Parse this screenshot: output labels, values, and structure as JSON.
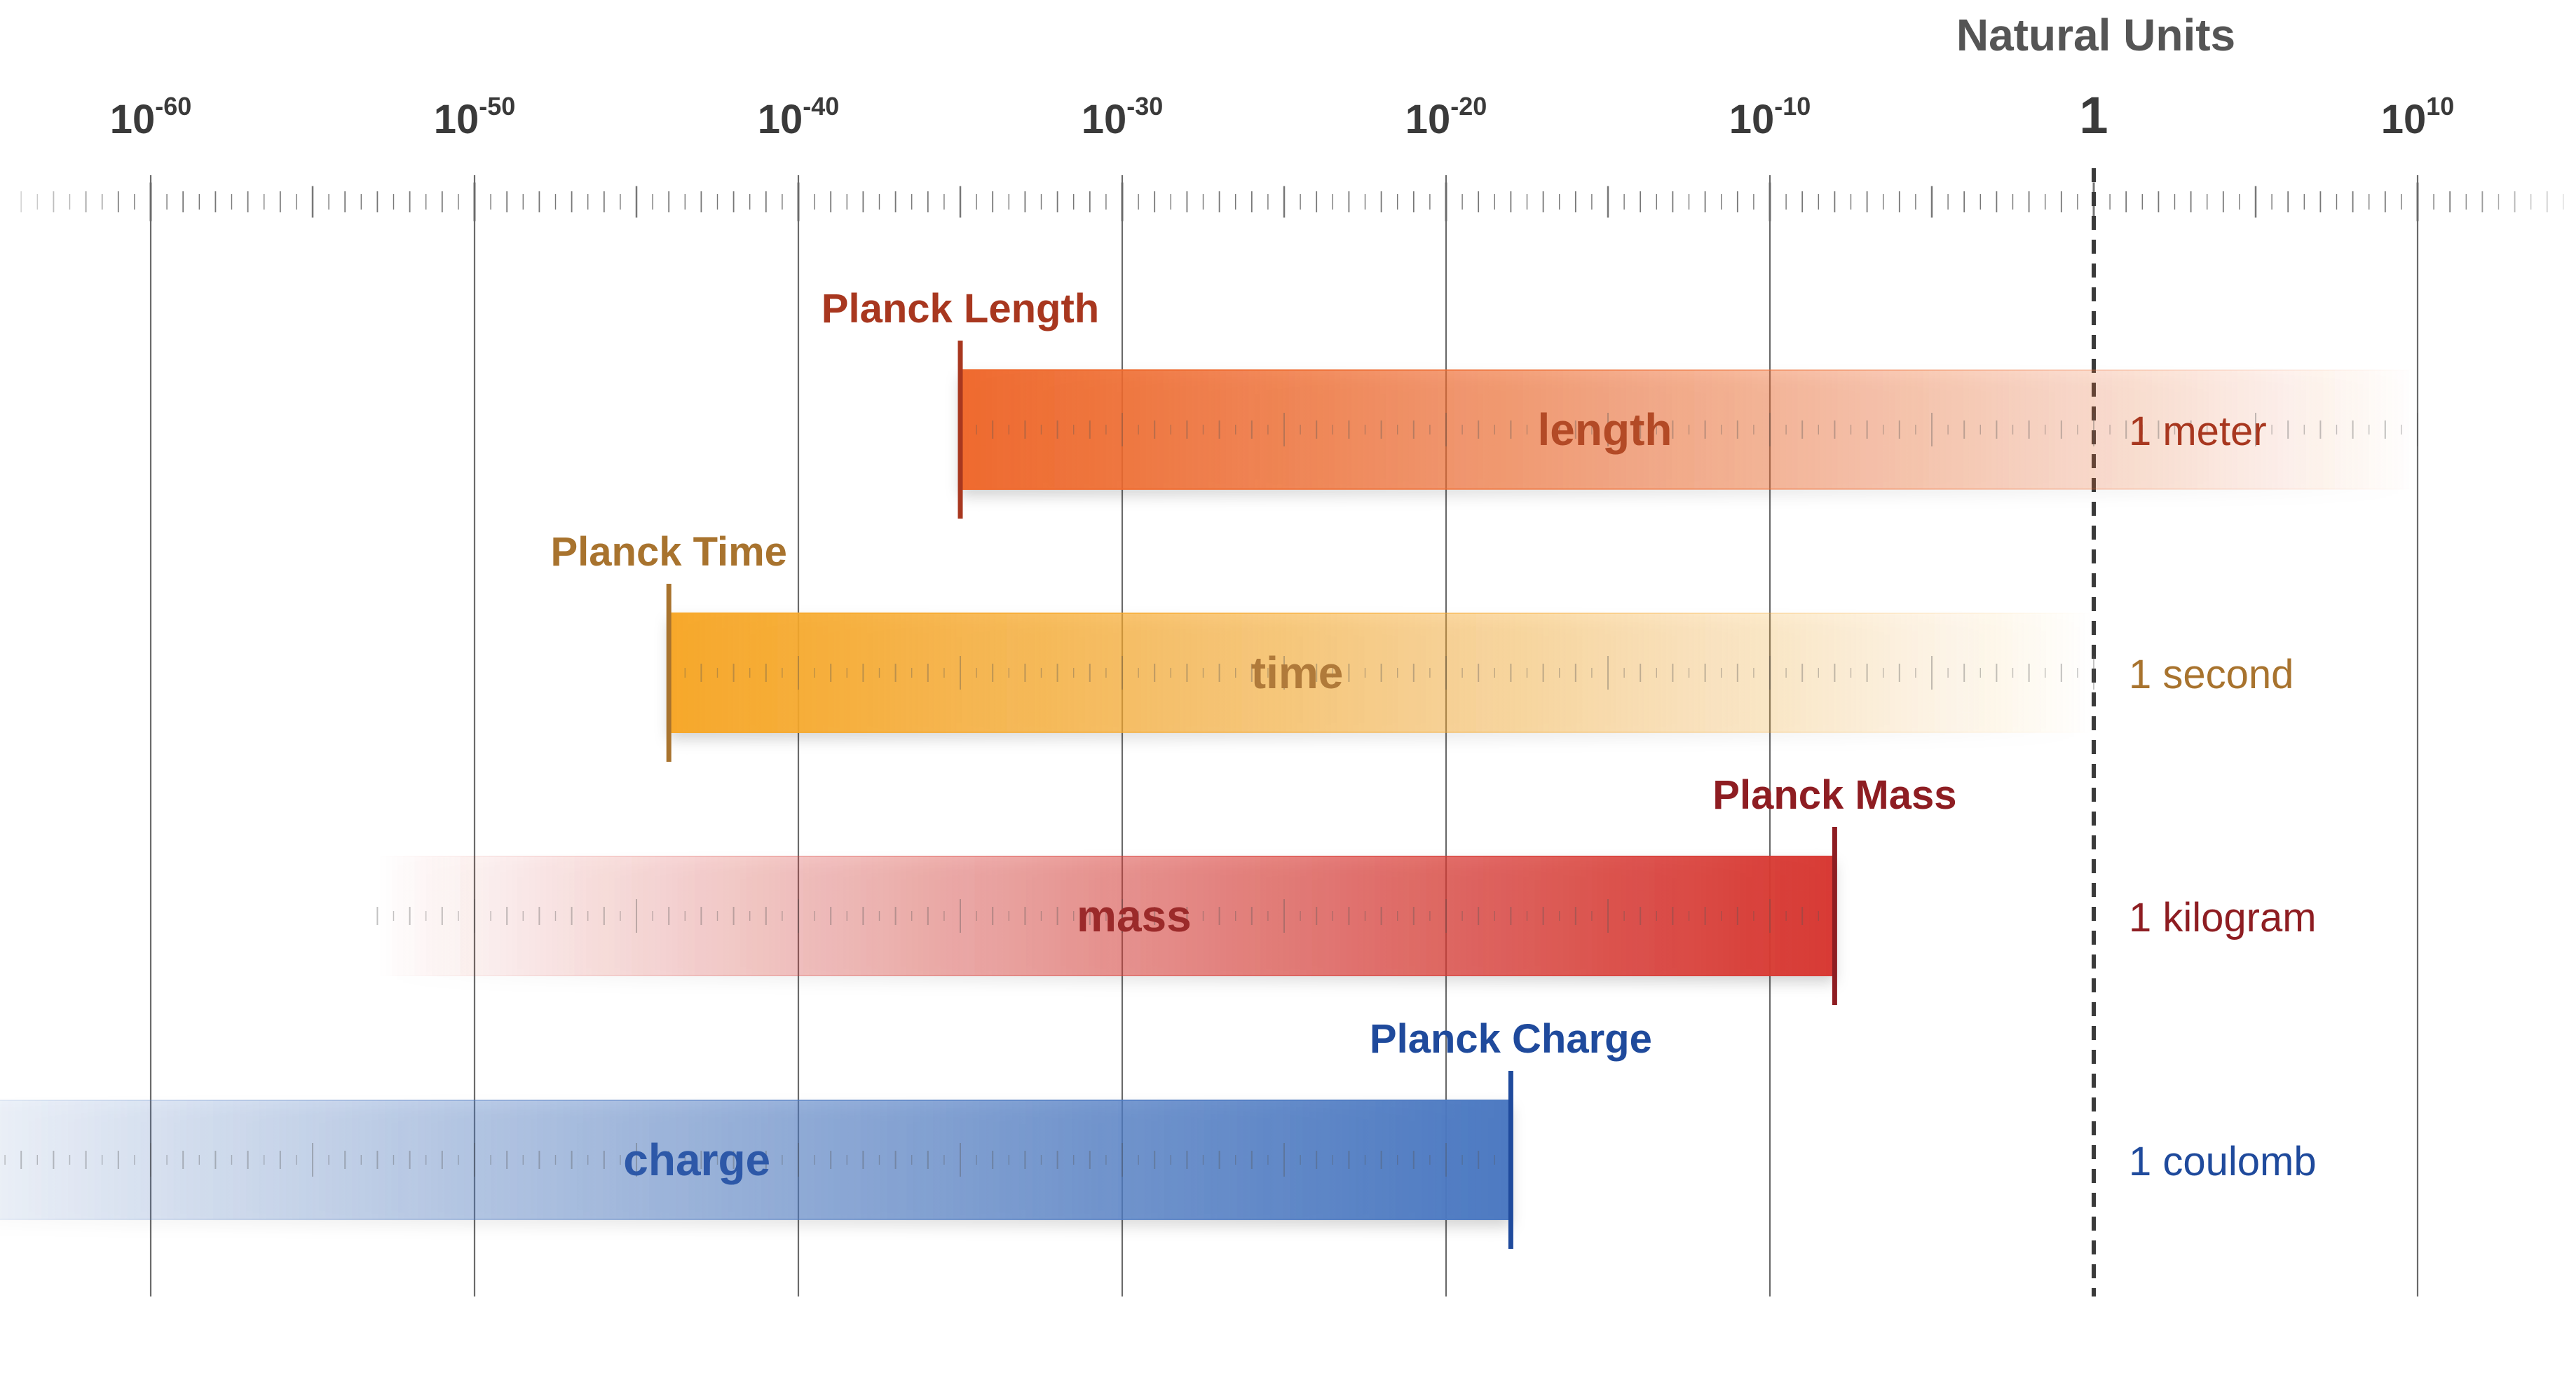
{
  "header": {
    "title": "Natural Units"
  },
  "axis": {
    "scale": "log10",
    "min_exp": -70,
    "max_exp": 16,
    "ticks": [
      {
        "exp": -60,
        "base": "10",
        "sup": "-60"
      },
      {
        "exp": -50,
        "base": "10",
        "sup": "-50"
      },
      {
        "exp": -40,
        "base": "10",
        "sup": "-40"
      },
      {
        "exp": -30,
        "base": "10",
        "sup": "-30"
      },
      {
        "exp": -20,
        "base": "10",
        "sup": "-20"
      },
      {
        "exp": -10,
        "base": "10",
        "sup": "-10"
      },
      {
        "exp": 0,
        "base": "1",
        "sup": ""
      },
      {
        "exp": 10,
        "base": "10",
        "sup": "10"
      }
    ],
    "reference_exp": 0
  },
  "quantities": [
    {
      "id": "length",
      "bar_label": "length",
      "planck_label": "Planck Length",
      "unit_label": "1 meter",
      "planck_exp": -35,
      "fade_exp": 10,
      "fade_side": "right",
      "color_strong": "#ef6a2e",
      "color_text": "#a8371f",
      "color_bar_text": "#b34a26"
    },
    {
      "id": "time",
      "bar_label": "time",
      "planck_label": "Planck Time",
      "unit_label": "1 second",
      "planck_exp": -44,
      "fade_exp": 0,
      "fade_side": "right",
      "color_strong": "#f7a82a",
      "color_text": "#a8732e",
      "color_bar_text": "#b07a3a"
    },
    {
      "id": "mass",
      "bar_label": "mass",
      "planck_label": "Planck Mass",
      "unit_label": "1 kilogram",
      "planck_exp": -8,
      "fade_exp": -53,
      "fade_side": "left",
      "color_strong": "#d83a34",
      "color_text": "#8e1d22",
      "color_bar_text": "#9b2a2a"
    },
    {
      "id": "charge",
      "bar_label": "charge",
      "planck_label": "Planck Charge",
      "unit_label": "1 coulomb",
      "planck_exp": -18,
      "fade_exp": -70,
      "fade_side": "left",
      "color_strong": "#4d7ac2",
      "color_text": "#1f4a9c",
      "color_bar_text": "#2d58a8"
    }
  ]
}
